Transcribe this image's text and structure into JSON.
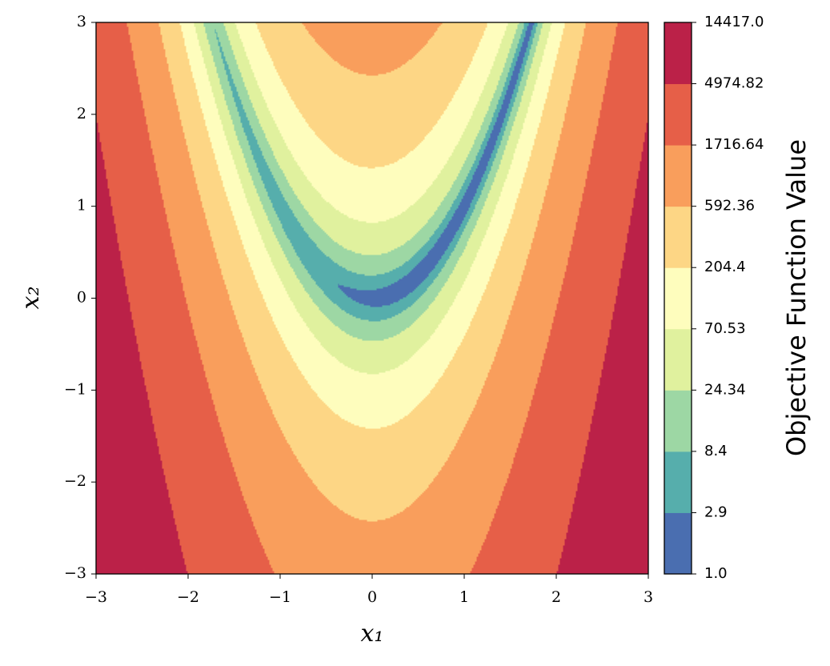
{
  "chart_data": {
    "type": "contour",
    "xlabel": "x₁",
    "ylabel": "x₂",
    "xlim": [
      -3,
      3
    ],
    "ylim": [
      -3,
      3
    ],
    "xticks": [
      {
        "value": -3,
        "label": "−3"
      },
      {
        "value": -2,
        "label": "−2"
      },
      {
        "value": -1,
        "label": "−1"
      },
      0,
      1,
      2,
      3
    ],
    "yticks": [
      {
        "value": -3,
        "label": "−3"
      },
      {
        "value": -2,
        "label": "−2"
      },
      {
        "value": -1,
        "label": "−1"
      },
      0,
      1,
      2,
      3
    ],
    "colorbar_label": "Objective Function Value",
    "levels": [
      {
        "value": 1,
        "label": "1.0"
      },
      2.9,
      8.4,
      24.34,
      70.53,
      204.4,
      592.36,
      1716.64,
      4974.82,
      {
        "value": 14417,
        "label": "14417.0"
      }
    ],
    "colors": [
      "#4a6eb0",
      "#56aeac",
      "#9dd7a4",
      "#e0f19e",
      "#fefdbd",
      "#fdd685",
      "#f99e5c",
      "#e65f48",
      "#bb2148"
    ]
  }
}
